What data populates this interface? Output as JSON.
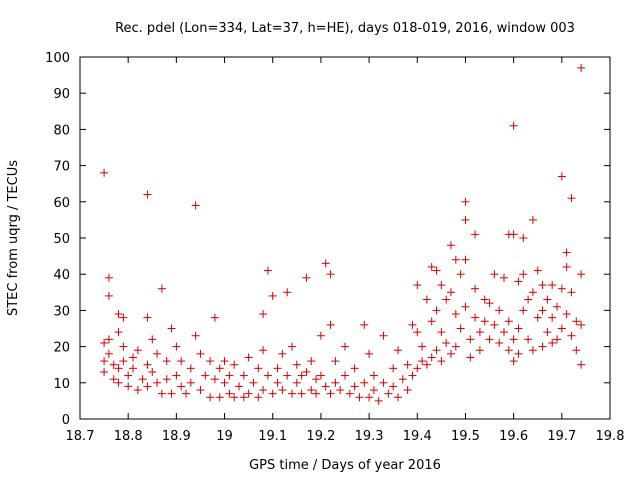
{
  "chart_data": {
    "type": "scatter",
    "title": "Rec. pdel (Lon=334, Lat=37, h=HE), days 018-019, 2016, window 003",
    "xlabel": "GPS time / Days of year 2016",
    "ylabel": "STEC from uqrg / TECUs",
    "xlim": [
      18.7,
      19.8
    ],
    "ylim": [
      0,
      100
    ],
    "xticks": [
      18.7,
      18.8,
      18.9,
      19.0,
      19.1,
      19.2,
      19.3,
      19.4,
      19.5,
      19.6,
      19.7,
      19.8
    ],
    "xtick_labels": [
      "18.7",
      "18.8",
      "18.9",
      "19",
      "19.1",
      "19.2",
      "19.3",
      "19.4",
      "19.5",
      "19.6",
      "19.7",
      "19.8"
    ],
    "yticks": [
      0,
      10,
      20,
      30,
      40,
      50,
      60,
      70,
      80,
      90,
      100
    ],
    "ytick_labels": [
      "0",
      "10",
      "20",
      "30",
      "40",
      "50",
      "60",
      "70",
      "80",
      "90",
      "100"
    ],
    "grid": false,
    "marker": "+",
    "color": "#d40000",
    "points": [
      [
        18.75,
        68
      ],
      [
        18.76,
        39
      ],
      [
        18.76,
        34
      ],
      [
        18.75,
        21
      ],
      [
        18.75,
        16
      ],
      [
        18.75,
        13
      ],
      [
        18.76,
        22
      ],
      [
        18.76,
        18
      ],
      [
        18.77,
        15
      ],
      [
        18.77,
        11
      ],
      [
        18.78,
        29
      ],
      [
        18.78,
        24
      ],
      [
        18.78,
        14
      ],
      [
        18.78,
        10
      ],
      [
        18.79,
        20
      ],
      [
        18.79,
        28
      ],
      [
        18.79,
        16
      ],
      [
        18.8,
        12
      ],
      [
        18.8,
        9
      ],
      [
        18.81,
        14
      ],
      [
        18.81,
        17
      ],
      [
        18.82,
        8
      ],
      [
        18.82,
        19
      ],
      [
        18.83,
        11
      ],
      [
        18.84,
        62
      ],
      [
        18.84,
        28
      ],
      [
        18.84,
        15
      ],
      [
        18.84,
        9
      ],
      [
        18.85,
        22
      ],
      [
        18.85,
        13
      ],
      [
        18.86,
        18
      ],
      [
        18.86,
        10
      ],
      [
        18.87,
        36
      ],
      [
        18.87,
        7
      ],
      [
        18.88,
        16
      ],
      [
        18.88,
        11
      ],
      [
        18.89,
        25
      ],
      [
        18.89,
        7
      ],
      [
        18.9,
        20
      ],
      [
        18.9,
        12
      ],
      [
        18.91,
        9
      ],
      [
        18.91,
        16
      ],
      [
        18.92,
        7
      ],
      [
        18.93,
        14
      ],
      [
        18.93,
        10
      ],
      [
        18.94,
        59
      ],
      [
        18.94,
        23
      ],
      [
        18.95,
        8
      ],
      [
        18.95,
        18
      ],
      [
        18.96,
        12
      ],
      [
        18.97,
        16
      ],
      [
        18.97,
        6
      ],
      [
        18.98,
        28
      ],
      [
        18.98,
        11
      ],
      [
        18.99,
        14
      ],
      [
        18.99,
        6
      ],
      [
        19.0,
        16
      ],
      [
        19.0,
        10
      ],
      [
        19.01,
        7
      ],
      [
        19.01,
        12
      ],
      [
        19.02,
        15
      ],
      [
        19.02,
        6
      ],
      [
        19.03,
        9
      ],
      [
        19.04,
        12
      ],
      [
        19.04,
        6
      ],
      [
        19.05,
        17
      ],
      [
        19.05,
        7
      ],
      [
        19.06,
        10
      ],
      [
        19.07,
        14
      ],
      [
        19.07,
        6
      ],
      [
        19.08,
        29
      ],
      [
        19.08,
        19
      ],
      [
        19.08,
        8
      ],
      [
        19.09,
        41
      ],
      [
        19.09,
        12
      ],
      [
        19.1,
        34
      ],
      [
        19.1,
        7
      ],
      [
        19.11,
        14
      ],
      [
        19.11,
        10
      ],
      [
        19.12,
        18
      ],
      [
        19.12,
        8
      ],
      [
        19.13,
        35
      ],
      [
        19.13,
        12
      ],
      [
        19.14,
        20
      ],
      [
        19.14,
        7
      ],
      [
        19.15,
        15
      ],
      [
        19.15,
        10
      ],
      [
        19.16,
        12
      ],
      [
        19.16,
        7
      ],
      [
        19.17,
        39
      ],
      [
        19.17,
        13
      ],
      [
        19.18,
        16
      ],
      [
        19.18,
        8
      ],
      [
        19.19,
        11
      ],
      [
        19.19,
        7
      ],
      [
        19.2,
        23
      ],
      [
        19.2,
        12
      ],
      [
        19.21,
        43
      ],
      [
        19.21,
        9
      ],
      [
        19.22,
        40
      ],
      [
        19.22,
        26
      ],
      [
        19.22,
        7
      ],
      [
        19.23,
        16
      ],
      [
        19.23,
        10
      ],
      [
        19.24,
        8
      ],
      [
        19.25,
        20
      ],
      [
        19.25,
        12
      ],
      [
        19.26,
        7
      ],
      [
        19.27,
        14
      ],
      [
        19.27,
        9
      ],
      [
        19.28,
        6
      ],
      [
        19.29,
        26
      ],
      [
        19.29,
        10
      ],
      [
        19.3,
        18
      ],
      [
        19.3,
        6
      ],
      [
        19.31,
        8
      ],
      [
        19.31,
        12
      ],
      [
        19.32,
        5
      ],
      [
        19.33,
        23
      ],
      [
        19.33,
        10
      ],
      [
        19.34,
        7
      ],
      [
        19.35,
        14
      ],
      [
        19.35,
        9
      ],
      [
        19.36,
        19
      ],
      [
        19.36,
        6
      ],
      [
        19.37,
        11
      ],
      [
        19.38,
        15
      ],
      [
        19.38,
        8
      ],
      [
        19.39,
        26
      ],
      [
        19.39,
        12
      ],
      [
        19.4,
        37
      ],
      [
        19.4,
        24
      ],
      [
        19.4,
        14
      ],
      [
        19.41,
        16
      ],
      [
        19.41,
        20
      ],
      [
        19.42,
        33
      ],
      [
        19.42,
        15
      ],
      [
        19.43,
        42
      ],
      [
        19.43,
        27
      ],
      [
        19.43,
        17
      ],
      [
        19.44,
        41
      ],
      [
        19.44,
        30
      ],
      [
        19.44,
        19
      ],
      [
        19.45,
        37
      ],
      [
        19.45,
        24
      ],
      [
        19.45,
        16
      ],
      [
        19.46,
        33
      ],
      [
        19.46,
        21
      ],
      [
        19.47,
        48
      ],
      [
        19.47,
        35
      ],
      [
        19.47,
        18
      ],
      [
        19.48,
        44
      ],
      [
        19.48,
        29
      ],
      [
        19.48,
        20
      ],
      [
        19.49,
        40
      ],
      [
        19.49,
        25
      ],
      [
        19.5,
        60
      ],
      [
        19.5,
        55
      ],
      [
        19.5,
        44
      ],
      [
        19.5,
        31
      ],
      [
        19.51,
        22
      ],
      [
        19.51,
        17
      ],
      [
        19.52,
        51
      ],
      [
        19.52,
        36
      ],
      [
        19.52,
        28
      ],
      [
        19.53,
        24
      ],
      [
        19.53,
        19
      ],
      [
        19.54,
        33
      ],
      [
        19.54,
        27
      ],
      [
        19.55,
        22
      ],
      [
        19.55,
        32
      ],
      [
        19.56,
        40
      ],
      [
        19.56,
        26
      ],
      [
        19.57,
        30
      ],
      [
        19.57,
        21
      ],
      [
        19.58,
        39
      ],
      [
        19.58,
        24
      ],
      [
        19.59,
        51
      ],
      [
        19.59,
        27
      ],
      [
        19.59,
        19
      ],
      [
        19.6,
        81
      ],
      [
        19.6,
        51
      ],
      [
        19.6,
        22
      ],
      [
        19.6,
        16
      ],
      [
        19.61,
        38
      ],
      [
        19.61,
        25
      ],
      [
        19.61,
        18
      ],
      [
        19.62,
        50
      ],
      [
        19.62,
        40
      ],
      [
        19.62,
        30
      ],
      [
        19.63,
        33
      ],
      [
        19.63,
        22
      ],
      [
        19.64,
        55
      ],
      [
        19.64,
        35
      ],
      [
        19.64,
        19
      ],
      [
        19.65,
        41
      ],
      [
        19.65,
        28
      ],
      [
        19.66,
        37
      ],
      [
        19.66,
        30
      ],
      [
        19.66,
        20
      ],
      [
        19.67,
        33
      ],
      [
        19.67,
        24
      ],
      [
        19.68,
        37
      ],
      [
        19.68,
        28
      ],
      [
        19.68,
        21
      ],
      [
        19.69,
        31
      ],
      [
        19.69,
        22
      ],
      [
        19.7,
        67
      ],
      [
        19.7,
        36
      ],
      [
        19.7,
        25
      ],
      [
        19.71,
        46
      ],
      [
        19.71,
        42
      ],
      [
        19.71,
        29
      ],
      [
        19.72,
        61
      ],
      [
        19.72,
        35
      ],
      [
        19.72,
        23
      ],
      [
        19.73,
        27
      ],
      [
        19.73,
        19
      ],
      [
        19.74,
        97
      ],
      [
        19.74,
        40
      ],
      [
        19.74,
        26
      ],
      [
        19.74,
        15
      ]
    ]
  }
}
